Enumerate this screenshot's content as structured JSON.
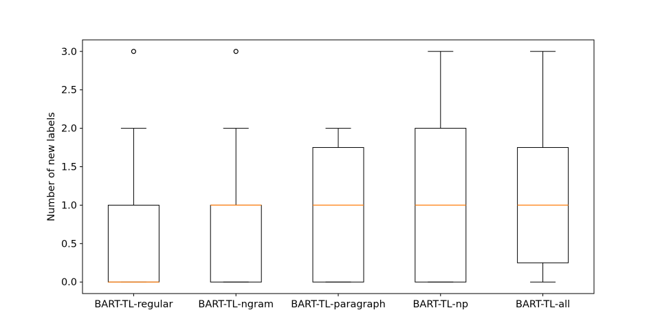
{
  "chart_data": {
    "type": "box",
    "title": "",
    "xlabel": "",
    "ylabel": "Number of new labels",
    "ylim": [
      -0.15,
      3.15
    ],
    "yticks": [
      "0.0",
      "0.5",
      "1.0",
      "1.5",
      "2.0",
      "2.5",
      "3.0"
    ],
    "categories": [
      "BART-TL-regular",
      "BART-TL-ngram",
      "BART-TL-paragraph",
      "BART-TL-np",
      "BART-TL-all"
    ],
    "boxes": [
      {
        "name": "BART-TL-regular",
        "whisker_low": 0,
        "q1": 0,
        "median": 0,
        "q3": 1,
        "whisker_high": 2,
        "outliers": [
          3
        ]
      },
      {
        "name": "BART-TL-ngram",
        "whisker_low": 0,
        "q1": 0,
        "median": 1,
        "q3": 1,
        "whisker_high": 2,
        "outliers": [
          3
        ]
      },
      {
        "name": "BART-TL-paragraph",
        "whisker_low": 0,
        "q1": 0,
        "median": 1,
        "q3": 1.75,
        "whisker_high": 2,
        "outliers": []
      },
      {
        "name": "BART-TL-np",
        "whisker_low": 0,
        "q1": 0,
        "median": 1,
        "q3": 2,
        "whisker_high": 3,
        "outliers": []
      },
      {
        "name": "BART-TL-all",
        "whisker_low": 0,
        "q1": 0.25,
        "median": 1,
        "q3": 1.75,
        "whisker_high": 3,
        "outliers": []
      }
    ],
    "grid": false,
    "legend": "none",
    "colors": {
      "box": "#000000",
      "median": "#ff7f0e",
      "outlier": "#000000"
    }
  }
}
